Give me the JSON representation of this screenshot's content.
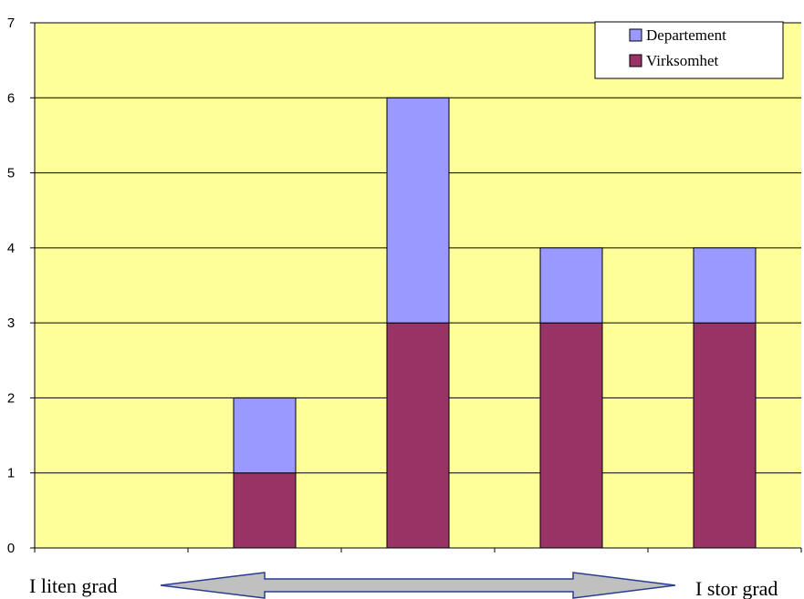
{
  "chart_data": {
    "type": "bar",
    "stacked": true,
    "categories": [
      "",
      "",
      "",
      "",
      ""
    ],
    "series": [
      {
        "name": "Virksomhet",
        "values": [
          0,
          1,
          3,
          3,
          3
        ],
        "color": "#993366"
      },
      {
        "name": "Departement",
        "values": [
          0,
          1,
          3,
          1,
          1
        ],
        "color": "#9999FF"
      }
    ],
    "ylim": [
      0,
      7
    ],
    "yticks": [
      0,
      1,
      2,
      3,
      4,
      5,
      6,
      7
    ],
    "grid": true,
    "legend_position": "top-right",
    "legend_order": [
      "Departement",
      "Virksomhet"
    ],
    "plot_background": "#FFFF99",
    "scale_left_label": "I liten grad",
    "scale_right_label": "I stor grad"
  }
}
